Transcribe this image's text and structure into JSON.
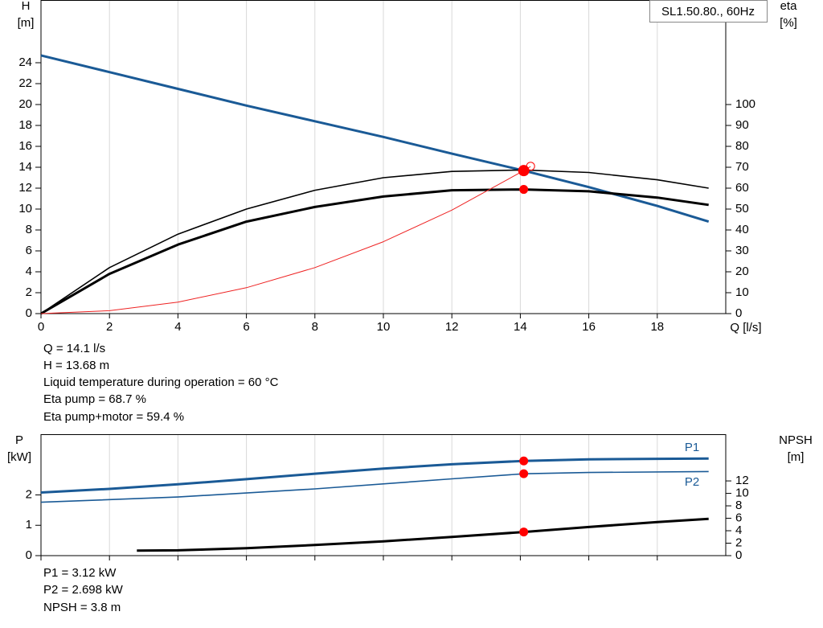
{
  "chart_data": [
    {
      "type": "line",
      "title": "SL1.50.80., 60Hz",
      "ylabel": [
        "H",
        "[m]"
      ],
      "y2label": [
        "eta",
        "[%]"
      ],
      "xlabel": "Q [l/s]",
      "xlim": [
        0,
        20
      ],
      "xticks": [
        0,
        2,
        4,
        6,
        8,
        10,
        12,
        14,
        16,
        18
      ],
      "ylim": [
        0,
        30
      ],
      "yticks": [
        0,
        2,
        4,
        6,
        8,
        10,
        12,
        14,
        16,
        18,
        20,
        22,
        24
      ],
      "y2lim": [
        0,
        150
      ],
      "y2ticks": [
        0,
        10,
        20,
        30,
        40,
        50,
        60,
        70,
        80,
        90,
        100
      ],
      "grid": "x",
      "series": [
        {
          "color": "#1a5a96",
          "width": 3,
          "x": [
            0,
            2,
            4,
            6,
            8,
            10,
            12,
            14.1,
            16,
            18,
            19.5
          ],
          "values": [
            24.7,
            23.1,
            21.5,
            19.9,
            18.4,
            16.9,
            15.3,
            13.68,
            12.1,
            10.3,
            8.8
          ]
        },
        {
          "color": "#000000",
          "width": 1.6,
          "axis": "y2",
          "x": [
            0,
            2,
            4,
            6,
            8,
            10,
            12,
            14.1,
            16,
            18,
            19.5
          ],
          "values": [
            0,
            22,
            38,
            50,
            59,
            65,
            68,
            68.7,
            67.5,
            64,
            60
          ]
        },
        {
          "color": "#000000",
          "width": 3,
          "axis": "y2",
          "x": [
            0,
            2,
            4,
            6,
            8,
            10,
            12,
            14.1,
            16,
            18,
            19.5
          ],
          "values": [
            0,
            19,
            33,
            44,
            51,
            56,
            59,
            59.4,
            58.5,
            55.5,
            52
          ]
        },
        {
          "color": "#ee2222",
          "width": 1,
          "x": [
            0,
            2,
            4,
            6,
            8,
            10,
            12,
            14.1,
            14.3
          ],
          "values": [
            0,
            0.28,
            1.1,
            2.48,
            4.4,
            6.88,
            9.9,
            13.68,
            14.07
          ]
        }
      ],
      "markers": [
        {
          "x": 14.1,
          "y": 13.68,
          "size": 7
        },
        {
          "x": 14.1,
          "y": 59.4,
          "axis": "y2",
          "size": 5.5
        },
        {
          "x": 14.3,
          "y": 14.1,
          "size": 5,
          "open": true
        }
      ],
      "annotations": [
        "Q = 14.1 l/s",
        "H = 13.68 m",
        "Liquid temperature during operation = 60 °C",
        "Eta pump = 68.7 %",
        "Eta pump+motor = 59.4 %"
      ]
    },
    {
      "type": "line",
      "ylabel": [
        "P",
        "[kW]"
      ],
      "y2label": [
        "NPSH",
        "[m]"
      ],
      "xlim": [
        0,
        20
      ],
      "xticks": [
        0,
        2,
        4,
        6,
        8,
        10,
        12,
        14,
        16,
        18
      ],
      "ylim": [
        0,
        4
      ],
      "yticks": [
        0,
        1,
        2
      ],
      "y2lim": [
        0,
        19.5
      ],
      "y2ticks": [
        0,
        2,
        4,
        6,
        8,
        10,
        12
      ],
      "grid": "x",
      "series": [
        {
          "name": "P1",
          "color": "#1a5a96",
          "width": 3,
          "x": [
            0,
            2,
            4,
            6,
            8,
            10,
            12,
            14.1,
            16,
            18,
            19.5
          ],
          "values": [
            2.08,
            2.2,
            2.35,
            2.52,
            2.7,
            2.87,
            3.01,
            3.12,
            3.17,
            3.19,
            3.2
          ]
        },
        {
          "name": "P2",
          "color": "#1a5a96",
          "width": 1.6,
          "x": [
            0,
            4,
            8,
            12,
            14.1,
            16,
            19.5
          ],
          "values": [
            1.76,
            1.93,
            2.2,
            2.53,
            2.698,
            2.74,
            2.77
          ]
        },
        {
          "color": "#000000",
          "width": 3,
          "axis": "y2",
          "x": [
            2.8,
            4,
            6,
            8,
            10,
            12,
            14.1,
            16,
            18,
            19.5
          ],
          "values": [
            0.8,
            0.85,
            1.2,
            1.7,
            2.3,
            3.0,
            3.8,
            4.6,
            5.4,
            5.9
          ]
        }
      ],
      "markers": [
        {
          "x": 14.1,
          "y": 3.12,
          "size": 5.5
        },
        {
          "x": 14.1,
          "y": 2.698,
          "size": 5.5
        },
        {
          "x": 14.1,
          "y": 3.8,
          "axis": "y2",
          "size": 5.5
        }
      ],
      "annotations": [
        "P1 = 3.12 kW",
        "P2 = 2.698 kW",
        "NPSH = 3.8 m"
      ]
    }
  ]
}
